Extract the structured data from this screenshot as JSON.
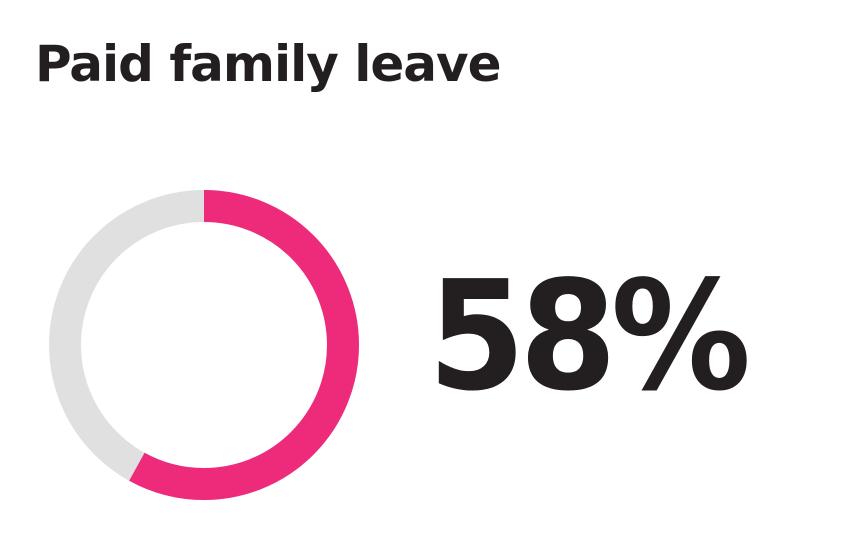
{
  "title": "Paid family leave",
  "chart_data": {
    "type": "pie",
    "variant": "donut",
    "title": "Paid family leave",
    "value": 58,
    "value_label": "58%",
    "unit": "%",
    "max": 100,
    "colors": {
      "value": "#ee2a7b",
      "remainder": "#e0e0e0",
      "text": "#231f20"
    }
  }
}
